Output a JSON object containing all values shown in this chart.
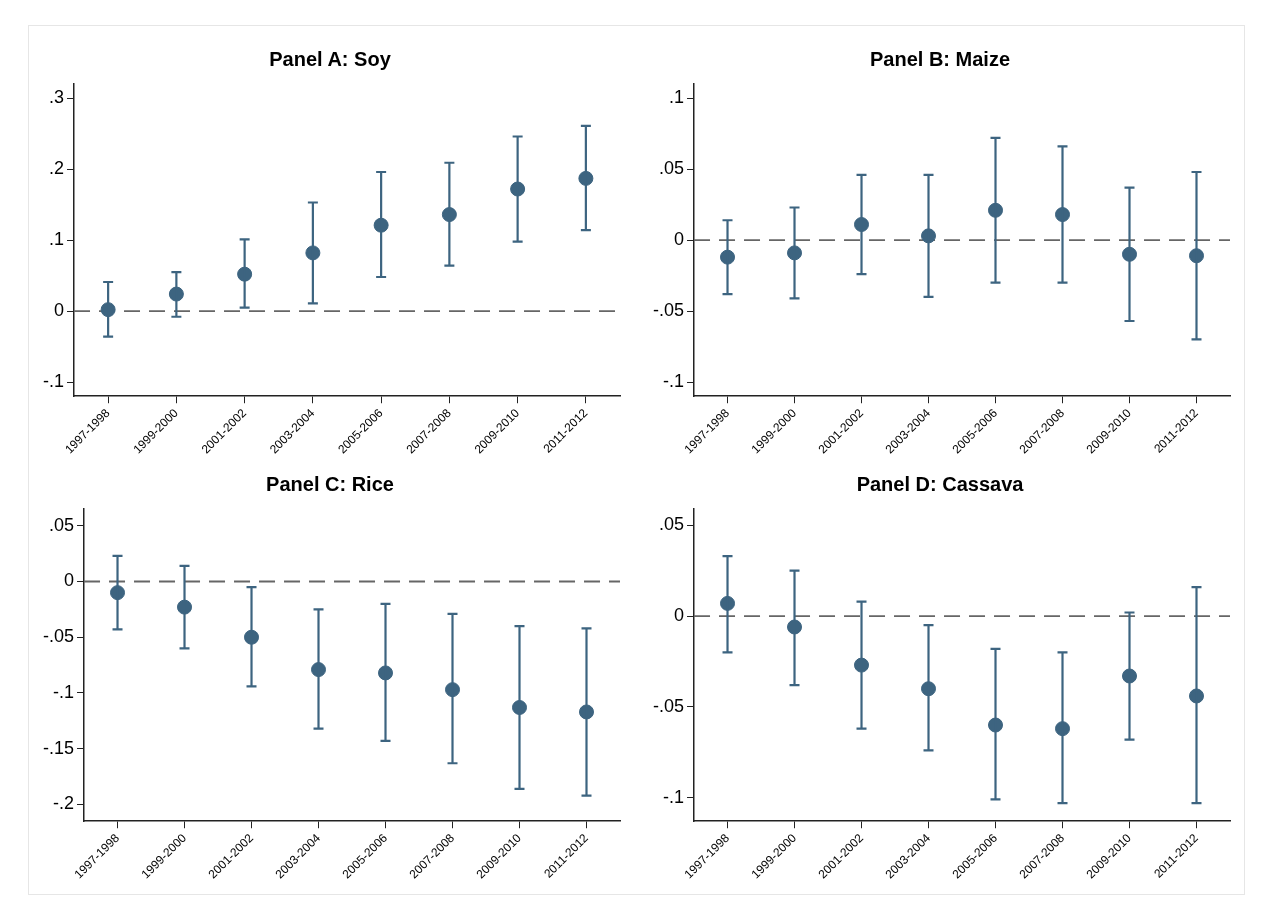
{
  "chart_data": [
    {
      "type": "scatter",
      "title": "Panel A: Soy",
      "categories": [
        "1997-1998",
        "1999-2000",
        "2001-2002",
        "2003-2004",
        "2005-2006",
        "2007-2008",
        "2009-2010",
        "2011-2012"
      ],
      "values": [
        0.002,
        0.024,
        0.052,
        0.082,
        0.121,
        0.136,
        0.172,
        0.187
      ],
      "errors": [
        [
          -0.036,
          0.041
        ],
        [
          -0.008,
          0.055
        ],
        [
          0.005,
          0.101
        ],
        [
          0.011,
          0.153
        ],
        [
          0.048,
          0.196
        ],
        [
          0.064,
          0.209
        ],
        [
          0.098,
          0.246
        ],
        [
          0.114,
          0.261
        ]
      ],
      "color": "#3d6480",
      "marker": "circle",
      "ylim": [
        -0.12,
        0.32
      ],
      "yticks": [
        {
          "value": -0.1,
          "label": "-.1"
        },
        {
          "value": 0,
          "label": "0"
        },
        {
          "value": 0.1,
          "label": ".1"
        },
        {
          "value": 0.2,
          "label": ".2"
        },
        {
          "value": 0.3,
          "label": ".3"
        }
      ],
      "ref_lines": [
        {
          "axis": "y",
          "value": 0,
          "color": "#666666",
          "line_style": "dashed"
        }
      ],
      "grid": false,
      "legend": false
    },
    {
      "type": "scatter",
      "title": "Panel B: Maize",
      "categories": [
        "1997-1998",
        "1999-2000",
        "2001-2002",
        "2003-2004",
        "2005-2006",
        "2007-2008",
        "2009-2010",
        "2011-2012"
      ],
      "values": [
        -0.012,
        -0.009,
        0.011,
        0.003,
        0.021,
        0.018,
        -0.01,
        -0.011
      ],
      "errors": [
        [
          -0.038,
          0.014
        ],
        [
          -0.041,
          0.023
        ],
        [
          -0.024,
          0.046
        ],
        [
          -0.04,
          0.046
        ],
        [
          -0.03,
          0.072
        ],
        [
          -0.03,
          0.066
        ],
        [
          -0.057,
          0.037
        ],
        [
          -0.07,
          0.048
        ]
      ],
      "color": "#3d6480",
      "marker": "circle",
      "ylim": [
        -0.11,
        0.11
      ],
      "yticks": [
        {
          "value": -0.1,
          "label": "-.1"
        },
        {
          "value": -0.05,
          "label": "-.05"
        },
        {
          "value": 0,
          "label": "0"
        },
        {
          "value": 0.05,
          "label": ".05"
        },
        {
          "value": 0.1,
          "label": ".1"
        }
      ],
      "ref_lines": [
        {
          "axis": "y",
          "value": 0,
          "color": "#666666",
          "line_style": "dashed"
        }
      ],
      "grid": false,
      "legend": false
    },
    {
      "type": "scatter",
      "title": "Panel C: Rice",
      "categories": [
        "1997-1998",
        "1999-2000",
        "2001-2002",
        "2003-2004",
        "2005-2006",
        "2007-2008",
        "2009-2010",
        "2011-2012"
      ],
      "values": [
        -0.01,
        -0.023,
        -0.05,
        -0.079,
        -0.082,
        -0.097,
        -0.113,
        -0.117
      ],
      "errors": [
        [
          -0.043,
          0.023
        ],
        [
          -0.06,
          0.014
        ],
        [
          -0.094,
          -0.005
        ],
        [
          -0.132,
          -0.025
        ],
        [
          -0.143,
          -0.02
        ],
        [
          -0.163,
          -0.029
        ],
        [
          -0.186,
          -0.04
        ],
        [
          -0.192,
          -0.042
        ]
      ],
      "color": "#3d6480",
      "marker": "circle",
      "ylim": [
        -0.215,
        0.065
      ],
      "yticks": [
        {
          "value": -0.2,
          "label": "-.2"
        },
        {
          "value": -0.15,
          "label": "-.15"
        },
        {
          "value": -0.1,
          "label": "-.1"
        },
        {
          "value": -0.05,
          "label": "-.05"
        },
        {
          "value": 0,
          "label": "0"
        },
        {
          "value": 0.05,
          "label": ".05"
        }
      ],
      "ref_lines": [
        {
          "axis": "y",
          "value": 0,
          "color": "#666666",
          "line_style": "dashed"
        }
      ],
      "grid": false,
      "legend": false
    },
    {
      "type": "scatter",
      "title": "Panel D: Cassava",
      "categories": [
        "1997-1998",
        "1999-2000",
        "2001-2002",
        "2003-2004",
        "2005-2006",
        "2007-2008",
        "2009-2010",
        "2011-2012"
      ],
      "values": [
        0.007,
        -0.006,
        -0.027,
        -0.04,
        -0.06,
        -0.062,
        -0.033,
        -0.044
      ],
      "errors": [
        [
          -0.02,
          0.033
        ],
        [
          -0.038,
          0.025
        ],
        [
          -0.062,
          0.008
        ],
        [
          -0.074,
          -0.005
        ],
        [
          -0.101,
          -0.018
        ],
        [
          -0.103,
          -0.02
        ],
        [
          -0.068,
          0.002
        ],
        [
          -0.103,
          0.016
        ]
      ],
      "color": "#3d6480",
      "marker": "circle",
      "ylim": [
        -0.113,
        0.059
      ],
      "yticks": [
        {
          "value": -0.1,
          "label": "-.1"
        },
        {
          "value": -0.05,
          "label": "-.05"
        },
        {
          "value": 0,
          "label": "0"
        },
        {
          "value": 0.05,
          "label": ".05"
        }
      ],
      "ref_lines": [
        {
          "axis": "y",
          "value": 0,
          "color": "#666666",
          "line_style": "dashed"
        }
      ],
      "grid": false,
      "legend": false
    }
  ]
}
